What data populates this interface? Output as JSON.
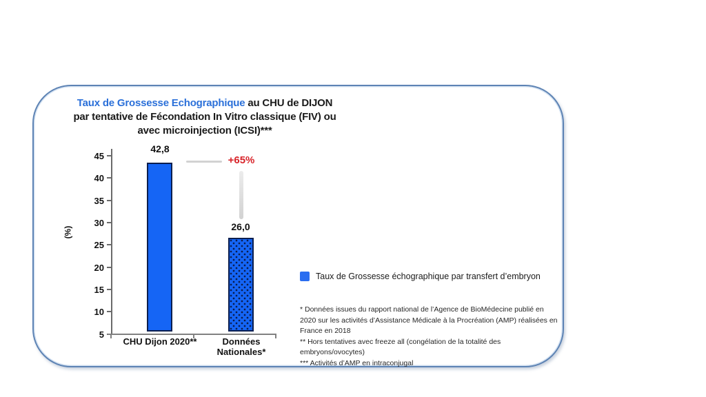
{
  "card": {
    "title": {
      "line1_highlight": "Taux de Grossesse Echographique",
      "line1_rest": " au CHU de DIJON",
      "line2": "par tentative de Fécondation In Vitro classique (FIV) ou",
      "line3": "avec microinjection (ICSI)***"
    },
    "legend_label": "Taux de Grossesse échographique par transfert d’embryon",
    "footnotes": [
      "* Données issues du rapport national de l’Agence de BioMédecine publié en 2020 sur les activités d’Assistance Médicale à la Procréation (AMP) réalisées en France en 2018",
      "** Hors tentatives avec freeze all (congélation de la totalité des embryons/ovocytes)",
      "*** Activités d’AMP en intraconjugal"
    ]
  },
  "chart_data": {
    "type": "bar",
    "categories": [
      "CHU Dijon 2020**",
      "Données Nationales*"
    ],
    "values": [
      42.8,
      26.0
    ],
    "value_labels": [
      "42,8",
      "26,0"
    ],
    "annotation": "+65%",
    "title": "Taux de Grossesse Echographique au CHU de DIJON par tentative de Fécondation In Vitro classique (FIV) ou avec microinjection (ICSI)***",
    "xlabel": "",
    "ylabel": "(%)",
    "ylim": [
      5,
      45
    ],
    "yticks": [
      45,
      40,
      35,
      30,
      25,
      20,
      15,
      10,
      5
    ],
    "grid": false,
    "legend_position": "right",
    "legend": [
      "Taux de Grossesse échographique par transfert d’embryon"
    ],
    "colors": {
      "bar_fill": "#1565f5",
      "bar_border": "#0b1e4e",
      "annotation": "#d8242a",
      "title_highlight": "#2b70d9",
      "card_border": "#5d83b4"
    }
  }
}
